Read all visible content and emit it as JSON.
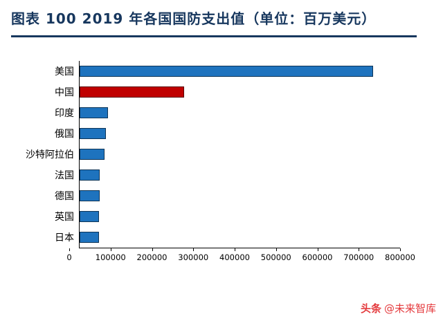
{
  "title": "图表 100  2019 年各国国防支出值（单位：百万美元）",
  "watermark": {
    "brand": "头条",
    "handle": "@未来智库"
  },
  "colors": {
    "title": "#17375E",
    "divider": "#17375E",
    "bar_default": "#1E73BE",
    "bar_highlight": "#C00000",
    "watermark": "#E4393C"
  },
  "chart_data": {
    "type": "bar",
    "orientation": "horizontal",
    "title": "图表 100  2019 年各国国防支出值（单位：百万美元）",
    "categories": [
      "美国",
      "中国",
      "印度",
      "俄国",
      "沙特阿拉伯",
      "法国",
      "德国",
      "英国",
      "日本"
    ],
    "values": [
      732000,
      261000,
      71100,
      65100,
      61900,
      50100,
      49300,
      48700,
      47600
    ],
    "bar_colors": [
      "#1E73BE",
      "#C00000",
      "#1E73BE",
      "#1E73BE",
      "#1E73BE",
      "#1E73BE",
      "#1E73BE",
      "#1E73BE",
      "#1E73BE"
    ],
    "xlabel": "",
    "ylabel": "",
    "xlim": [
      0,
      800000
    ],
    "x_ticks": [
      0,
      100000,
      200000,
      300000,
      400000,
      500000,
      600000,
      700000,
      800000
    ],
    "grid": false,
    "legend": false
  }
}
